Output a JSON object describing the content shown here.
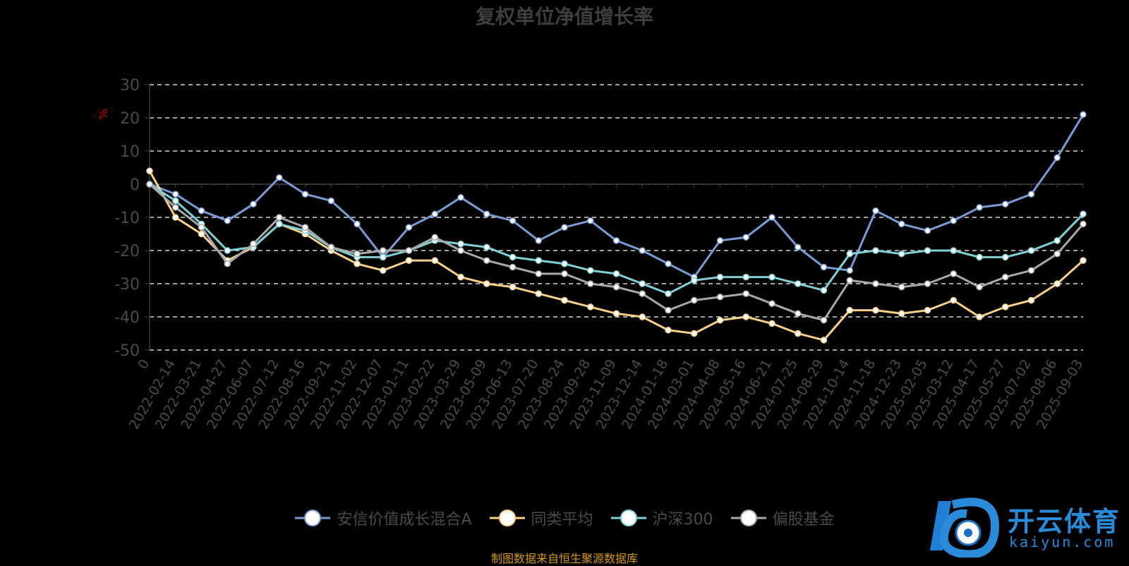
{
  "title": "复权单位净值增长率",
  "source_note": "制图数据来自恒生聚源数据库",
  "logo": {
    "name": "开云体育",
    "domain": "kaiyun.com"
  },
  "colors": {
    "background": "#000000",
    "grid": "#ffffff",
    "axis_text": "#4a4a4a",
    "ylabel": "#cc0000"
  },
  "chart_data": {
    "type": "line",
    "title": "复权单位净值增长率",
    "ylabel": "%",
    "ylim": [
      -50,
      30
    ],
    "yticks": [
      30,
      20,
      10,
      0,
      -10,
      -20,
      -30,
      -40,
      -50
    ],
    "grid": true,
    "legend_position": "bottom",
    "x_labels": [
      "0",
      "2022-02-14",
      "2022-03-21",
      "2022-04-27",
      "2022-06-07",
      "2022-07-12",
      "2022-08-16",
      "2022-09-21",
      "2022-11-02",
      "2022-12-07",
      "2023-01-11",
      "2023-02-22",
      "2023-03-29",
      "2023-05-09",
      "2023-06-13",
      "2023-07-20",
      "2023-08-24",
      "2023-09-28",
      "2023-11-09",
      "2023-12-14",
      "2024-01-18",
      "2024-03-01",
      "2024-04-08",
      "2024-05-16",
      "2024-06-21",
      "2024-07-25",
      "2024-08-29",
      "2024-10-14",
      "2024-11-18",
      "2024-12-23",
      "2025-02-05",
      "2025-03-12",
      "2025-04-17",
      "2025-05-27",
      "2025-07-02",
      "2025-08-06",
      "2025-09-03"
    ],
    "series": [
      {
        "name": "安信价值成长混合A",
        "color": "#7b9bd4",
        "values": [
          0,
          -3,
          -8,
          -11,
          -6,
          2,
          -3,
          -5,
          -12,
          -22,
          -13,
          -9,
          -4,
          -9,
          -11,
          -17,
          -13,
          -11,
          -17,
          -20,
          -24,
          -28,
          -17,
          -16,
          -10,
          -19,
          -25,
          -26,
          -8,
          -12,
          -14,
          -11,
          -7,
          -6,
          -3,
          8,
          21
        ]
      },
      {
        "name": "同类平均",
        "color": "#f7d08a",
        "values": [
          4,
          -10,
          -15,
          -23,
          -19,
          -12,
          -15,
          -20,
          -24,
          -26,
          -23,
          -23,
          -28,
          -30,
          -31,
          -33,
          -35,
          -37,
          -39,
          -40,
          -44,
          -45,
          -41,
          -40,
          -42,
          -45,
          -47,
          -38,
          -38,
          -39,
          -38,
          -35,
          -40,
          -37,
          -35,
          -30,
          -23
        ]
      },
      {
        "name": "沪深300",
        "color": "#7fd1d6",
        "values": [
          0,
          -5,
          -12,
          -20,
          -19,
          -12,
          -14,
          -19,
          -22,
          -22,
          -20,
          -17,
          -18,
          -19,
          -22,
          -23,
          -24,
          -26,
          -27,
          -30,
          -33,
          -29,
          -28,
          -28,
          -28,
          -30,
          -32,
          -21,
          -20,
          -21,
          -20,
          -20,
          -22,
          -22,
          -20,
          -17,
          -9
        ]
      },
      {
        "name": "偏股基金",
        "color": "#a8a8a8",
        "values": [
          0,
          -7,
          -13,
          -24,
          -18,
          -10,
          -13,
          -19,
          -21,
          -20,
          -20,
          -16,
          -20,
          -23,
          -25,
          -27,
          -27,
          -30,
          -31,
          -33,
          -38,
          -35,
          -34,
          -33,
          -36,
          -39,
          -41,
          -29,
          -30,
          -31,
          -30,
          -27,
          -31,
          -28,
          -26,
          -21,
          -12
        ]
      }
    ]
  }
}
